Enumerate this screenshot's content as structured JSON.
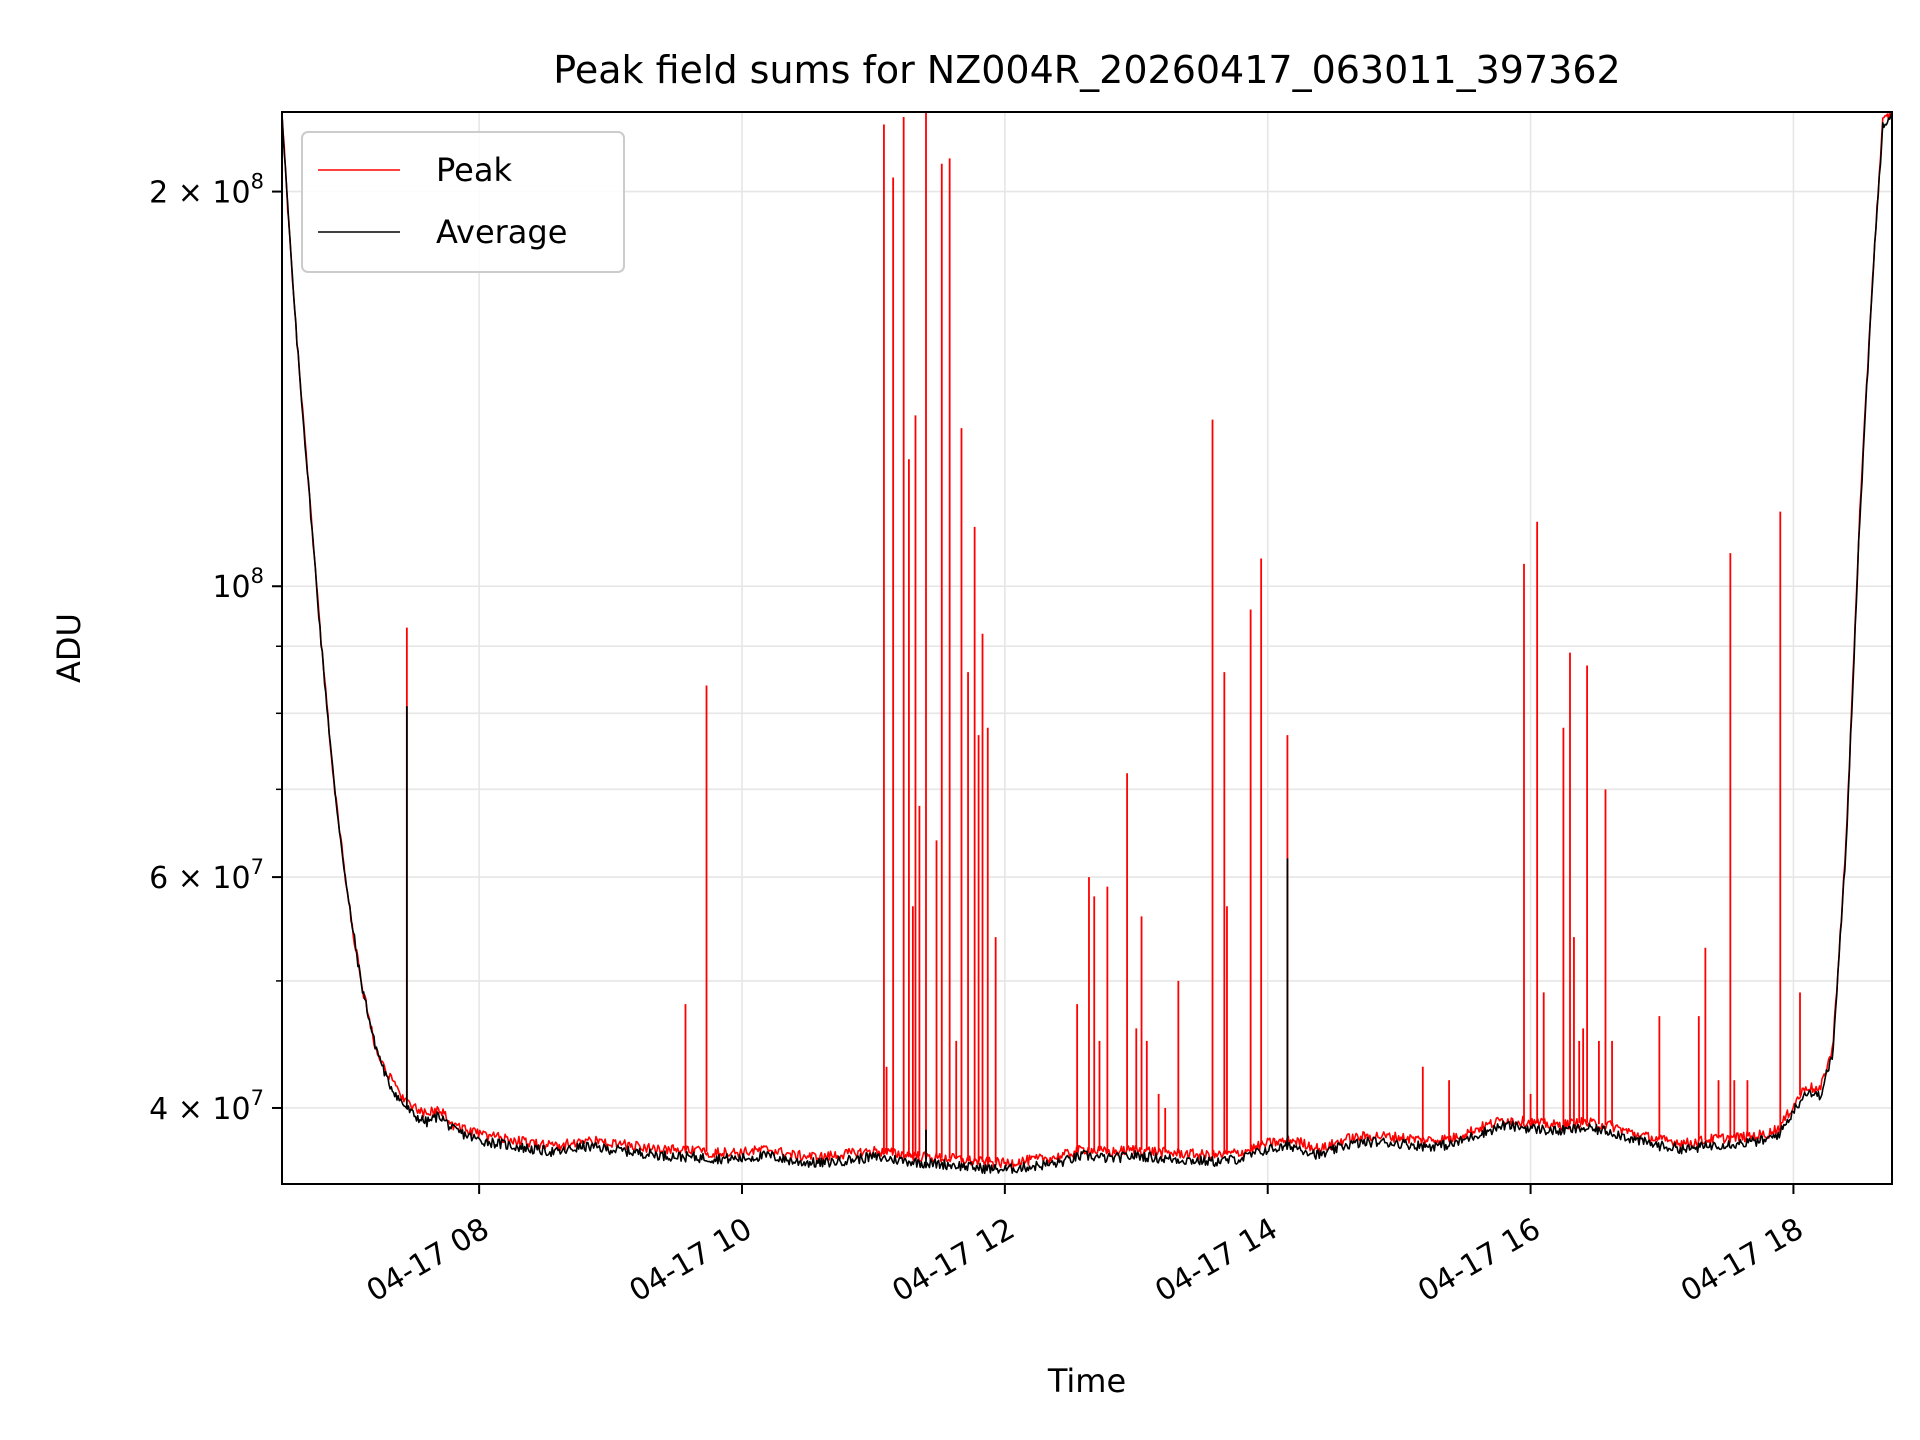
{
  "chart_data": {
    "type": "line",
    "title": "Peak field sums for NZ004R_20260417_063011_397362",
    "xlabel": "Time",
    "ylabel": "ADU",
    "x_unit": "hour of 2026-04-17",
    "xlim": [
      6.5,
      18.75
    ],
    "ylim": [
      35000000,
      230000000
    ],
    "yscale": "log",
    "grid": true,
    "legend_position": "top-left",
    "x_ticks": [
      {
        "value": 8,
        "label": "04-17 08"
      },
      {
        "value": 10,
        "label": "04-17 10"
      },
      {
        "value": 12,
        "label": "04-17 12"
      },
      {
        "value": 14,
        "label": "04-17 14"
      },
      {
        "value": 16,
        "label": "04-17 16"
      },
      {
        "value": 18,
        "label": "04-17 18"
      }
    ],
    "y_ticks": [
      {
        "value": 40000000,
        "mant": "4",
        "exp": "7"
      },
      {
        "value": 60000000,
        "mant": "6",
        "exp": "7"
      },
      {
        "value": 100000000,
        "mant": "",
        "exp": "8"
      },
      {
        "value": 200000000,
        "mant": "2",
        "exp": "8"
      }
    ],
    "y_minor_ticks": [
      50000000,
      70000000,
      80000000,
      90000000
    ],
    "series": [
      {
        "name": "Average",
        "color": "#000000",
        "points": [
          [
            6.5,
            230000000
          ],
          [
            6.55,
            190000000
          ],
          [
            6.6,
            160000000
          ],
          [
            6.7,
            120000000
          ],
          [
            6.8,
            90000000
          ],
          [
            6.9,
            70000000
          ],
          [
            7.0,
            58000000
          ],
          [
            7.1,
            50000000
          ],
          [
            7.2,
            45000000
          ],
          [
            7.3,
            42000000
          ],
          [
            7.4,
            40500000
          ],
          [
            7.5,
            39500000
          ],
          [
            7.6,
            39000000
          ],
          [
            7.7,
            39500000
          ],
          [
            7.8,
            38500000
          ],
          [
            8.0,
            37800000
          ],
          [
            8.2,
            37500000
          ],
          [
            8.4,
            37200000
          ],
          [
            8.6,
            37000000
          ],
          [
            8.8,
            37400000
          ],
          [
            9.0,
            37200000
          ],
          [
            9.2,
            37000000
          ],
          [
            9.4,
            36800000
          ],
          [
            9.6,
            36700000
          ],
          [
            9.8,
            36600000
          ],
          [
            10.0,
            36600000
          ],
          [
            10.2,
            36800000
          ],
          [
            10.4,
            36400000
          ],
          [
            10.6,
            36300000
          ],
          [
            10.8,
            36500000
          ],
          [
            11.0,
            36700000
          ],
          [
            11.2,
            36500000
          ],
          [
            11.4,
            36300000
          ],
          [
            11.6,
            36200000
          ],
          [
            11.8,
            36000000
          ],
          [
            12.0,
            35900000
          ],
          [
            12.2,
            36100000
          ],
          [
            12.4,
            36300000
          ],
          [
            12.6,
            36800000
          ],
          [
            12.8,
            36600000
          ],
          [
            13.0,
            36800000
          ],
          [
            13.2,
            36600000
          ],
          [
            13.4,
            36500000
          ],
          [
            13.6,
            36400000
          ],
          [
            13.8,
            36600000
          ],
          [
            14.0,
            37200000
          ],
          [
            14.2,
            37400000
          ],
          [
            14.4,
            36800000
          ],
          [
            14.6,
            37500000
          ],
          [
            14.8,
            37700000
          ],
          [
            15.0,
            37600000
          ],
          [
            15.2,
            37400000
          ],
          [
            15.4,
            37500000
          ],
          [
            15.6,
            38200000
          ],
          [
            15.8,
            38800000
          ],
          [
            16.0,
            38600000
          ],
          [
            16.2,
            38400000
          ],
          [
            16.4,
            38600000
          ],
          [
            16.6,
            38400000
          ],
          [
            16.8,
            37800000
          ],
          [
            17.0,
            37400000
          ],
          [
            17.2,
            37200000
          ],
          [
            17.4,
            37500000
          ],
          [
            17.6,
            37600000
          ],
          [
            17.8,
            37800000
          ],
          [
            17.9,
            38300000
          ],
          [
            18.0,
            39800000
          ],
          [
            18.1,
            41200000
          ],
          [
            18.2,
            40800000
          ],
          [
            18.3,
            44000000
          ],
          [
            18.4,
            63000000
          ],
          [
            18.5,
            110000000
          ],
          [
            18.6,
            170000000
          ],
          [
            18.68,
            225000000
          ],
          [
            18.75,
            230000000
          ]
        ],
        "spikes": [
          [
            7.45,
            81000000
          ],
          [
            11.4,
            38500000
          ],
          [
            14.15,
            62000000
          ]
        ]
      },
      {
        "name": "Peak",
        "color": "#ff0000",
        "points": [
          [
            6.5,
            230000000
          ],
          [
            6.55,
            190000000
          ],
          [
            6.6,
            160000000
          ],
          [
            6.7,
            120000000
          ],
          [
            6.8,
            90000000
          ],
          [
            6.9,
            70000000
          ],
          [
            7.0,
            58000000
          ],
          [
            7.1,
            50000000
          ],
          [
            7.2,
            45000000
          ],
          [
            7.3,
            42500000
          ],
          [
            7.4,
            41000000
          ],
          [
            7.5,
            40000000
          ],
          [
            7.6,
            39500000
          ],
          [
            7.7,
            40000000
          ],
          [
            7.8,
            38800000
          ],
          [
            8.0,
            38200000
          ],
          [
            8.2,
            37900000
          ],
          [
            8.4,
            37600000
          ],
          [
            8.6,
            37400000
          ],
          [
            8.8,
            37800000
          ],
          [
            9.0,
            37600000
          ],
          [
            9.2,
            37400000
          ],
          [
            9.4,
            37200000
          ],
          [
            9.6,
            37100000
          ],
          [
            9.8,
            37000000
          ],
          [
            10.0,
            37000000
          ],
          [
            10.2,
            37200000
          ],
          [
            10.4,
            36800000
          ],
          [
            10.6,
            36700000
          ],
          [
            10.8,
            36900000
          ],
          [
            11.0,
            37100000
          ],
          [
            11.2,
            36900000
          ],
          [
            11.4,
            36700000
          ],
          [
            11.6,
            36600000
          ],
          [
            11.8,
            36400000
          ],
          [
            12.0,
            36300000
          ],
          [
            12.2,
            36500000
          ],
          [
            12.4,
            36700000
          ],
          [
            12.6,
            37200000
          ],
          [
            12.8,
            37000000
          ],
          [
            13.0,
            37200000
          ],
          [
            13.2,
            37000000
          ],
          [
            13.4,
            36900000
          ],
          [
            13.6,
            36800000
          ],
          [
            13.8,
            37000000
          ],
          [
            14.0,
            37600000
          ],
          [
            14.2,
            37800000
          ],
          [
            14.4,
            37200000
          ],
          [
            14.6,
            37900000
          ],
          [
            14.8,
            38100000
          ],
          [
            15.0,
            38000000
          ],
          [
            15.2,
            37800000
          ],
          [
            15.4,
            37900000
          ],
          [
            15.6,
            38600000
          ],
          [
            15.8,
            39200000
          ],
          [
            16.0,
            39000000
          ],
          [
            16.2,
            38800000
          ],
          [
            16.4,
            39000000
          ],
          [
            16.6,
            38800000
          ],
          [
            16.8,
            38200000
          ],
          [
            17.0,
            37800000
          ],
          [
            17.2,
            37600000
          ],
          [
            17.4,
            37900000
          ],
          [
            17.6,
            38000000
          ],
          [
            17.8,
            38200000
          ],
          [
            17.9,
            38700000
          ],
          [
            18.0,
            40200000
          ],
          [
            18.1,
            41600000
          ],
          [
            18.2,
            41200000
          ],
          [
            18.3,
            44500000
          ],
          [
            18.4,
            63500000
          ],
          [
            18.5,
            111000000
          ],
          [
            18.6,
            171000000
          ],
          [
            18.68,
            226000000
          ],
          [
            18.75,
            230000000
          ]
        ],
        "spikes": [
          [
            7.45,
            93000000
          ],
          [
            9.57,
            48000000
          ],
          [
            9.73,
            84000000
          ],
          [
            11.08,
            225000000
          ],
          [
            11.1,
            43000000
          ],
          [
            11.15,
            205000000
          ],
          [
            11.23,
            228000000
          ],
          [
            11.27,
            125000000
          ],
          [
            11.3,
            57000000
          ],
          [
            11.32,
            135000000
          ],
          [
            11.35,
            68000000
          ],
          [
            11.4,
            232000000
          ],
          [
            11.48,
            64000000
          ],
          [
            11.52,
            210000000
          ],
          [
            11.58,
            212000000
          ],
          [
            11.63,
            45000000
          ],
          [
            11.67,
            132000000
          ],
          [
            11.72,
            86000000
          ],
          [
            11.77,
            111000000
          ],
          [
            11.8,
            77000000
          ],
          [
            11.83,
            92000000
          ],
          [
            11.87,
            78000000
          ],
          [
            11.93,
            54000000
          ],
          [
            12.55,
            48000000
          ],
          [
            12.64,
            60000000
          ],
          [
            12.68,
            58000000
          ],
          [
            12.72,
            45000000
          ],
          [
            12.78,
            59000000
          ],
          [
            12.93,
            72000000
          ],
          [
            13.0,
            46000000
          ],
          [
            13.04,
            56000000
          ],
          [
            13.08,
            45000000
          ],
          [
            13.17,
            41000000
          ],
          [
            13.22,
            40000000
          ],
          [
            13.32,
            50000000
          ],
          [
            13.58,
            134000000
          ],
          [
            13.67,
            86000000
          ],
          [
            13.69,
            57000000
          ],
          [
            13.87,
            96000000
          ],
          [
            13.95,
            105000000
          ],
          [
            14.15,
            77000000
          ],
          [
            15.18,
            43000000
          ],
          [
            15.38,
            42000000
          ],
          [
            15.95,
            104000000
          ],
          [
            16.0,
            41000000
          ],
          [
            16.05,
            112000000
          ],
          [
            16.1,
            49000000
          ],
          [
            16.25,
            78000000
          ],
          [
            16.3,
            89000000
          ],
          [
            16.33,
            54000000
          ],
          [
            16.37,
            45000000
          ],
          [
            16.4,
            46000000
          ],
          [
            16.43,
            87000000
          ],
          [
            16.52,
            45000000
          ],
          [
            16.57,
            70000000
          ],
          [
            16.62,
            45000000
          ],
          [
            16.98,
            47000000
          ],
          [
            17.28,
            47000000
          ],
          [
            17.33,
            53000000
          ],
          [
            17.43,
            42000000
          ],
          [
            17.52,
            106000000
          ],
          [
            17.55,
            42000000
          ],
          [
            17.65,
            42000000
          ],
          [
            17.9,
            114000000
          ],
          [
            18.05,
            49000000
          ]
        ]
      }
    ]
  }
}
